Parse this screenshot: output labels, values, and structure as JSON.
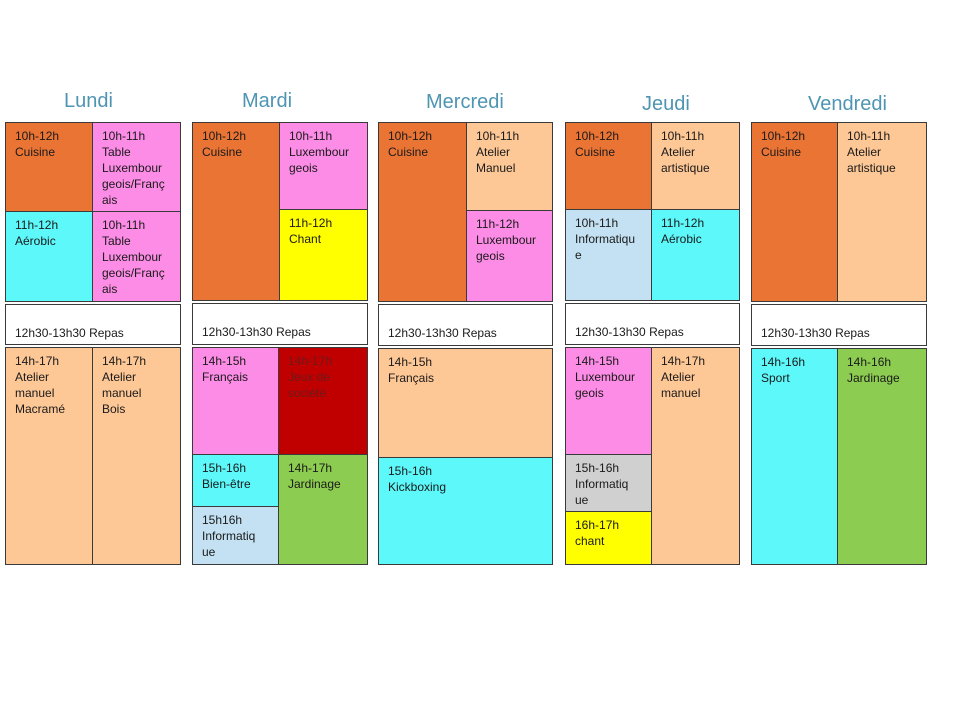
{
  "days": [
    {
      "name": "Lundi",
      "morning": [
        "10h-12h\nCuisine",
        "10h-11h\nTable\nLuxembour\ngeois/Franç\nais",
        "11h-12h\nAérobic",
        "10h-11h\nTable\nLuxembour\ngeois/Franç\nais"
      ],
      "lunch": "12h30-13h30 Repas",
      "afternoon": [
        "14h-17h\nAtelier\nmanuel\nMacramé",
        "14h-17h\nAtelier\nmanuel\nBois"
      ]
    },
    {
      "name": "Mardi",
      "morning": [
        "10h-12h\nCuisine",
        "10h-11h\nLuxembour\ngeois",
        "11h-12h\nChant"
      ],
      "lunch": "12h30-13h30 Repas",
      "afternoon": [
        "14h-15h\nFrançais",
        "14h-17h\nJeux de\nsociété",
        "15h-16h\nBien-être",
        "14h-17h\nJardinage",
        "15h16h\nInformatiq\nue"
      ]
    },
    {
      "name": "Mercredi",
      "morning": [
        "10h-12h\nCuisine",
        "10h-11h\nAtelier\nManuel",
        "11h-12h\nLuxembour\ngeois"
      ],
      "lunch": "12h30-13h30 Repas",
      "afternoon": [
        "14h-15h\nFrançais",
        "15h-16h\nKickboxing"
      ]
    },
    {
      "name": "Jeudi",
      "morning": [
        "10h-12h\nCuisine",
        "10h-11h\nAtelier\nartistique",
        "10h-11h\nInformatiqu\ne",
        "11h-12h\nAérobic"
      ],
      "lunch": "12h30-13h30 Repas",
      "afternoon": [
        "14h-15h\nLuxembour\ngeois",
        "14h-17h\nAtelier\nmanuel",
        "15h-16h\nInformatiq\nue",
        "16h-17h\nchant"
      ]
    },
    {
      "name": "Vendredi",
      "morning": [
        "10h-12h\nCuisine",
        "10h-11h\nAtelier\nartistique"
      ],
      "lunch": "12h30-13h30 Repas",
      "afternoon": [
        "14h-16h\nSport",
        "14h-16h\nJardinage"
      ]
    }
  ]
}
